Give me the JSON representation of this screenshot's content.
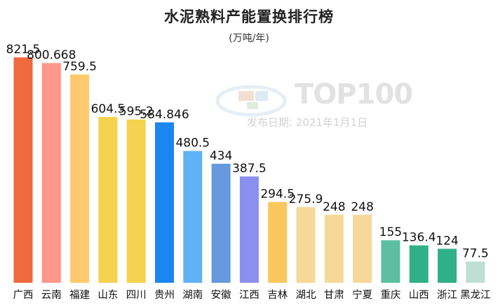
{
  "chart_data": {
    "type": "bar",
    "title": "水泥熟料产能置换排行榜",
    "subtitle": "(万吨/年)",
    "categories": [
      "广西",
      "云南",
      "福建",
      "山东",
      "四川",
      "贵州",
      "湖南",
      "安徽",
      "江西",
      "吉林",
      "湖北",
      "甘肃",
      "宁夏",
      "重庆",
      "山西",
      "浙江",
      "黑龙江"
    ],
    "values": [
      821.5,
      800.668,
      759.5,
      604.5,
      595.2,
      584.846,
      480.5,
      434,
      387.5,
      294.5,
      275.9,
      248,
      248,
      155,
      136.4,
      124,
      77.5
    ],
    "value_labels": [
      "821.5",
      "800.668",
      "759.5",
      "604.5",
      "595.2",
      "584.846",
      "480.5",
      "434",
      "387.5",
      "294.5",
      "275.9",
      "248",
      "248",
      "155",
      "136.4",
      "124",
      "77.5"
    ],
    "colors": [
      "#f06a3f",
      "#ff968a",
      "#ffc96d",
      "#f5d24f",
      "#f5d24f",
      "#1b86f0",
      "#5fb2f5",
      "#6699dd",
      "#8a8ff0",
      "#fbc75d",
      "#f6d898",
      "#f6d898",
      "#f6d898",
      "#5cbfa0",
      "#2fb087",
      "#2fb087",
      "#bde0d5"
    ],
    "ylim": [
      0,
      821.5
    ],
    "xlabel": "",
    "ylabel": ""
  },
  "watermark": {
    "logo_top": "TOP100",
    "date": "发布日期: 2021年1月1日"
  }
}
